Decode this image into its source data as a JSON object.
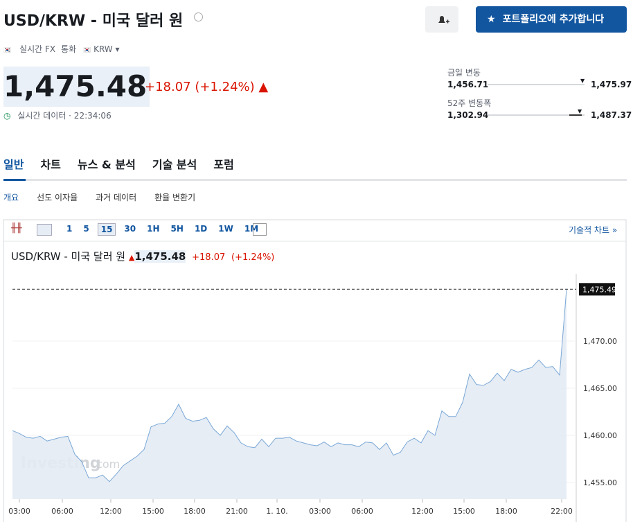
{
  "header": {
    "title": "USD/KRW - 미국 달러 원",
    "portfolio_button": "포트폴리오에 추가합니다"
  },
  "meta": [
    "실시간 FX",
    "통화",
    "KRW"
  ],
  "quote": {
    "price": "1,475.48",
    "change": "+18.07",
    "change_pct": "(+1.24%)",
    "status": "실시간 데이터 · 22:34:06"
  },
  "ranges": [
    {
      "label": "금일 변동",
      "low": "1,456.71",
      "high": "1,475.97"
    },
    {
      "label": "52주 변동폭",
      "low": "1,302.94",
      "high": "1,487.37"
    }
  ],
  "tabs": [
    "일반",
    "차트",
    "뉴스 & 분석",
    "기술 분석",
    "포럼"
  ],
  "subtabs": [
    "개요",
    "선도 이자율",
    "과거 데이터",
    "환율 변환기"
  ],
  "toolbar": {
    "intervals": [
      "1",
      "5",
      "15",
      "30",
      "1H",
      "5H",
      "1D",
      "1W",
      "1M"
    ],
    "link": "기술적 차트 »"
  },
  "chart": {
    "type": "line",
    "title": "USD/KRW - 미국 달러 원",
    "price": "1,475.48",
    "change": "+18.07",
    "change_pct": "(+1.24%)",
    "price_tag": "1,475.49",
    "watermark": "Investing",
    "watermark_suffix": ".com",
    "color": "#7aa7d6",
    "values": [
      1460.5,
      1460.2,
      1459.8,
      1459.7,
      1459.9,
      1459.4,
      1459.6,
      1459.8,
      1459.9,
      1458.0,
      1457.2,
      1455.5,
      1455.5,
      1455.8,
      1455.1,
      1455.9,
      1456.8,
      1457.3,
      1457.8,
      1458.5,
      1460.9,
      1461.2,
      1461.3,
      1462.0,
      1463.3,
      1461.8,
      1461.5,
      1461.6,
      1461.9,
      1460.7,
      1460.0,
      1461.0,
      1460.3,
      1459.2,
      1458.8,
      1458.7,
      1459.6,
      1458.8,
      1459.7,
      1459.7,
      1459.8,
      1459.4,
      1459.2,
      1459.0,
      1458.9,
      1459.3,
      1458.8,
      1459.2,
      1459.0,
      1459.0,
      1458.8,
      1459.3,
      1459.2,
      1458.5,
      1459.2,
      1457.9,
      1458.2,
      1459.3,
      1459.7,
      1459.2,
      1460.5,
      1460.0,
      1462.6,
      1462.0,
      1462.0,
      1463.5,
      1466.5,
      1465.4,
      1465.3,
      1465.7,
      1466.6,
      1465.8,
      1467.0,
      1466.7,
      1467.0,
      1467.2,
      1468.0,
      1467.2,
      1467.3,
      1466.4,
      1475.49
    ],
    "xlim": [
      0,
      80
    ],
    "xticks": [
      {
        "value": 1,
        "label": "03:00"
      },
      {
        "value": 7.2,
        "label": "06:00"
      },
      {
        "value": 14.2,
        "label": "12:00"
      },
      {
        "value": 20.3,
        "label": "15:00"
      },
      {
        "value": 26.3,
        "label": "18:00"
      },
      {
        "value": 32.4,
        "label": "21:00"
      },
      {
        "value": 38.2,
        "label": "1. 10."
      },
      {
        "value": 44.4,
        "label": "03:00"
      },
      {
        "value": 50.5,
        "label": "06:00"
      },
      {
        "value": 59.2,
        "label": "12:00"
      },
      {
        "value": 65.2,
        "label": "15:00"
      },
      {
        "value": 71.3,
        "label": "18:00"
      },
      {
        "value": 79.3,
        "label": "22:00"
      }
    ],
    "ylim": [
      1453.24,
      1477.13
    ],
    "yticks": [
      {
        "value": 1455,
        "label": "1,455.00"
      },
      {
        "value": 1460,
        "label": "1,460.00"
      },
      {
        "value": 1465,
        "label": "1,465.00"
      },
      {
        "value": 1470,
        "label": "1,470.00"
      }
    ]
  }
}
